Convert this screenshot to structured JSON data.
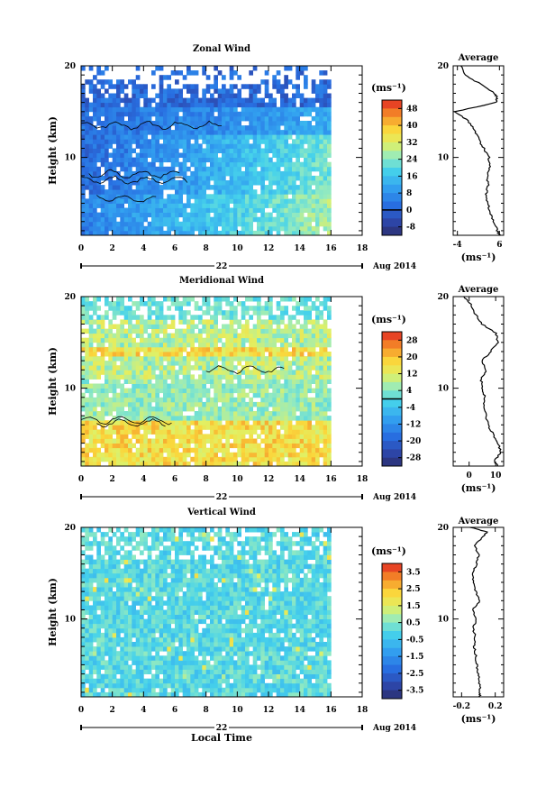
{
  "chart_data": [
    {
      "type": "heatmap",
      "title": "Zonal Wind",
      "ylabel": "Height (km)",
      "xlabel": "",
      "x_ticks": [
        "0",
        "2",
        "4",
        "6",
        "8",
        "10",
        "12",
        "14",
        "16",
        "18"
      ],
      "y_ticks": [
        "10",
        "20"
      ],
      "xlim": [
        0,
        18
      ],
      "ylim": [
        1.5,
        20
      ],
      "date_label": "22",
      "date_right": "Aug 2014",
      "data_end_hour": 16,
      "colorbar_unit": "(ms⁻¹)",
      "colorbar_ticks": [
        "48",
        "40",
        "32",
        "24",
        "16",
        "8",
        "0",
        "-8"
      ],
      "colorbar_range": [
        -12,
        52
      ],
      "contour_level": 0,
      "profile": {
        "title": "Average",
        "xlabel": "(ms⁻¹)",
        "x_ticks": [
          "-4",
          "6"
        ],
        "y_ticks": [
          "10",
          "20"
        ],
        "xlim": [
          -5,
          7
        ],
        "height": [
          1.5,
          2,
          3,
          4,
          5,
          6,
          7,
          8,
          9,
          10,
          11,
          12,
          13,
          14,
          15,
          16,
          16.5,
          17,
          18,
          19,
          20
        ],
        "value": [
          6,
          5.5,
          4.6,
          3.8,
          3.2,
          2.9,
          3.3,
          3.1,
          3.6,
          3.5,
          2.3,
          1,
          0.2,
          -1.5,
          -4.5,
          5.2,
          5.5,
          4.8,
          1.5,
          -2.2,
          -3.2
        ]
      }
    },
    {
      "type": "heatmap",
      "title": "Meridional Wind",
      "ylabel": "Height (km)",
      "xlabel": "",
      "x_ticks": [
        "0",
        "2",
        "4",
        "6",
        "8",
        "10",
        "12",
        "14",
        "16",
        "18"
      ],
      "y_ticks": [
        "10",
        "20"
      ],
      "xlim": [
        0,
        18
      ],
      "ylim": [
        1.5,
        20
      ],
      "date_label": "22",
      "date_right": "Aug 2014",
      "data_end_hour": 16,
      "colorbar_unit": "(ms⁻¹)",
      "colorbar_ticks": [
        "28",
        "20",
        "12",
        "4",
        "-4",
        "-12",
        "-20",
        "-28"
      ],
      "colorbar_range": [
        -32,
        32
      ],
      "contour_level": 0,
      "profile": {
        "title": "Average",
        "xlabel": "(ms⁻¹)",
        "x_ticks": [
          "0",
          "10"
        ],
        "y_ticks": [
          "10",
          "20"
        ],
        "xlim": [
          -6,
          13
        ],
        "height": [
          1.5,
          2,
          3,
          4,
          5,
          6,
          7,
          8,
          9,
          10,
          11,
          12,
          13,
          14,
          15,
          16,
          17,
          18,
          19,
          20
        ],
        "value": [
          11,
          9.5,
          12,
          11,
          9,
          7,
          6.5,
          5.5,
          6,
          5,
          4.5,
          6.5,
          5,
          8,
          11,
          10,
          5,
          2.5,
          1,
          -2
        ]
      }
    },
    {
      "type": "heatmap",
      "title": "Vertical Wind",
      "ylabel": "Height (km)",
      "xlabel": "Local Time",
      "x_ticks": [
        "0",
        "2",
        "4",
        "6",
        "8",
        "10",
        "12",
        "14",
        "16",
        "18"
      ],
      "y_ticks": [
        "10",
        "20"
      ],
      "xlim": [
        0,
        18
      ],
      "ylim": [
        1.5,
        20
      ],
      "date_label": "22",
      "date_right": "Aug 2014",
      "data_end_hour": 16,
      "colorbar_unit": "(ms⁻¹)",
      "colorbar_ticks": [
        "3.5",
        "2.5",
        "1.5",
        "0.5",
        "-0.5",
        "-1.5",
        "-2.5",
        "-3.5"
      ],
      "colorbar_range": [
        -4,
        4
      ],
      "profile": {
        "title": "Average",
        "xlabel": "(ms⁻¹)",
        "x_ticks": [
          "-0.2",
          "0.2"
        ],
        "y_ticks": [
          "10",
          "20"
        ],
        "xlim": [
          -0.3,
          0.3
        ],
        "height": [
          1.5,
          2,
          3,
          4,
          5,
          6,
          7,
          8,
          9,
          10,
          11,
          12,
          13,
          14,
          15,
          16,
          17,
          18,
          19,
          19.5,
          20
        ],
        "value": [
          0.02,
          0.02,
          0.01,
          0,
          -0.02,
          -0.03,
          -0.05,
          -0.04,
          -0.06,
          -0.03,
          -0.07,
          0.02,
          -0.03,
          -0.05,
          -0.08,
          -0.02,
          0,
          -0.04,
          0.05,
          0.1,
          -0.1
        ]
      }
    }
  ]
}
